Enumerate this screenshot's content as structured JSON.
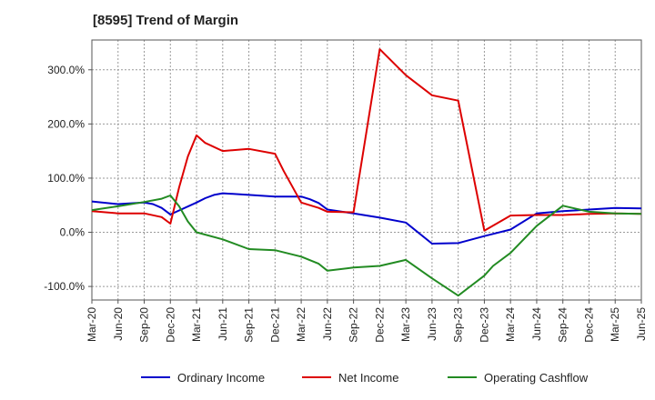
{
  "chart_data": {
    "type": "line",
    "title": "[8595]  Trend of Margin",
    "xlabel": "",
    "ylabel": "",
    "x_tick_labels": [
      "Mar-20",
      "Jun-20",
      "Sep-20",
      "Dec-20",
      "Mar-21",
      "Jun-21",
      "Sep-21",
      "Dec-21",
      "Mar-22",
      "Jun-22",
      "Sep-22",
      "Dec-22",
      "Mar-23",
      "Jun-23",
      "Sep-23",
      "Dec-23",
      "Mar-24",
      "Jun-24",
      "Sep-24",
      "Dec-24",
      "Mar-25",
      "Jun-25"
    ],
    "y_ticks": [
      -100,
      0,
      100,
      200,
      300
    ],
    "y_tick_labels": [
      "-100.0%",
      "0.0%",
      "100.0%",
      "200.0%",
      "300.0%"
    ],
    "ylim": [
      -125,
      355
    ],
    "xlim": [
      0,
      63
    ],
    "grid": true,
    "legend_position": "bottom",
    "series": [
      {
        "name": "Ordinary Income",
        "color": "#0000cc",
        "points": [
          [
            0,
            57
          ],
          [
            3,
            52
          ],
          [
            6,
            55
          ],
          [
            7,
            52
          ],
          [
            8,
            45
          ],
          [
            9,
            33
          ],
          [
            12,
            55
          ],
          [
            13,
            63
          ],
          [
            14,
            69
          ],
          [
            15,
            72
          ],
          [
            18,
            69
          ],
          [
            21,
            66
          ],
          [
            24,
            66
          ],
          [
            25,
            61
          ],
          [
            26,
            54
          ],
          [
            27,
            42
          ],
          [
            30,
            35
          ],
          [
            33,
            27
          ],
          [
            36,
            18
          ],
          [
            39,
            -21
          ],
          [
            42,
            -20
          ],
          [
            45,
            -7
          ],
          [
            48,
            5
          ],
          [
            51,
            35
          ],
          [
            54,
            39
          ],
          [
            57,
            42
          ],
          [
            60,
            45
          ],
          [
            63,
            44
          ]
        ]
      },
      {
        "name": "Net Income",
        "color": "#dd0000",
        "points": [
          [
            0,
            39
          ],
          [
            3,
            35
          ],
          [
            6,
            35
          ],
          [
            8,
            28
          ],
          [
            9,
            16
          ],
          [
            10,
            83
          ],
          [
            11,
            140
          ],
          [
            12,
            179
          ],
          [
            13,
            165
          ],
          [
            15,
            150
          ],
          [
            18,
            154
          ],
          [
            21,
            145
          ],
          [
            22,
            113
          ],
          [
            24,
            55
          ],
          [
            26,
            45
          ],
          [
            27,
            38
          ],
          [
            30,
            37
          ],
          [
            33,
            338
          ],
          [
            36,
            290
          ],
          [
            39,
            253
          ],
          [
            42,
            243
          ],
          [
            45,
            3
          ],
          [
            48,
            31
          ],
          [
            51,
            32
          ],
          [
            54,
            32
          ],
          [
            57,
            34
          ],
          [
            60,
            35
          ],
          [
            63,
            34
          ]
        ]
      },
      {
        "name": "Operating Cashflow",
        "color": "#228b22",
        "points": [
          [
            0,
            41
          ],
          [
            3,
            48
          ],
          [
            6,
            56
          ],
          [
            8,
            62
          ],
          [
            9,
            68
          ],
          [
            10,
            48
          ],
          [
            11,
            20
          ],
          [
            12,
            0
          ],
          [
            15,
            -13
          ],
          [
            18,
            -31
          ],
          [
            21,
            -33
          ],
          [
            24,
            -45
          ],
          [
            26,
            -58
          ],
          [
            27,
            -71
          ],
          [
            30,
            -65
          ],
          [
            33,
            -62
          ],
          [
            36,
            -51
          ],
          [
            39,
            -85
          ],
          [
            42,
            -117
          ],
          [
            45,
            -80
          ],
          [
            46,
            -62
          ],
          [
            48,
            -38
          ],
          [
            51,
            12
          ],
          [
            54,
            49
          ],
          [
            57,
            38
          ],
          [
            60,
            35
          ],
          [
            63,
            34
          ]
        ]
      }
    ]
  }
}
